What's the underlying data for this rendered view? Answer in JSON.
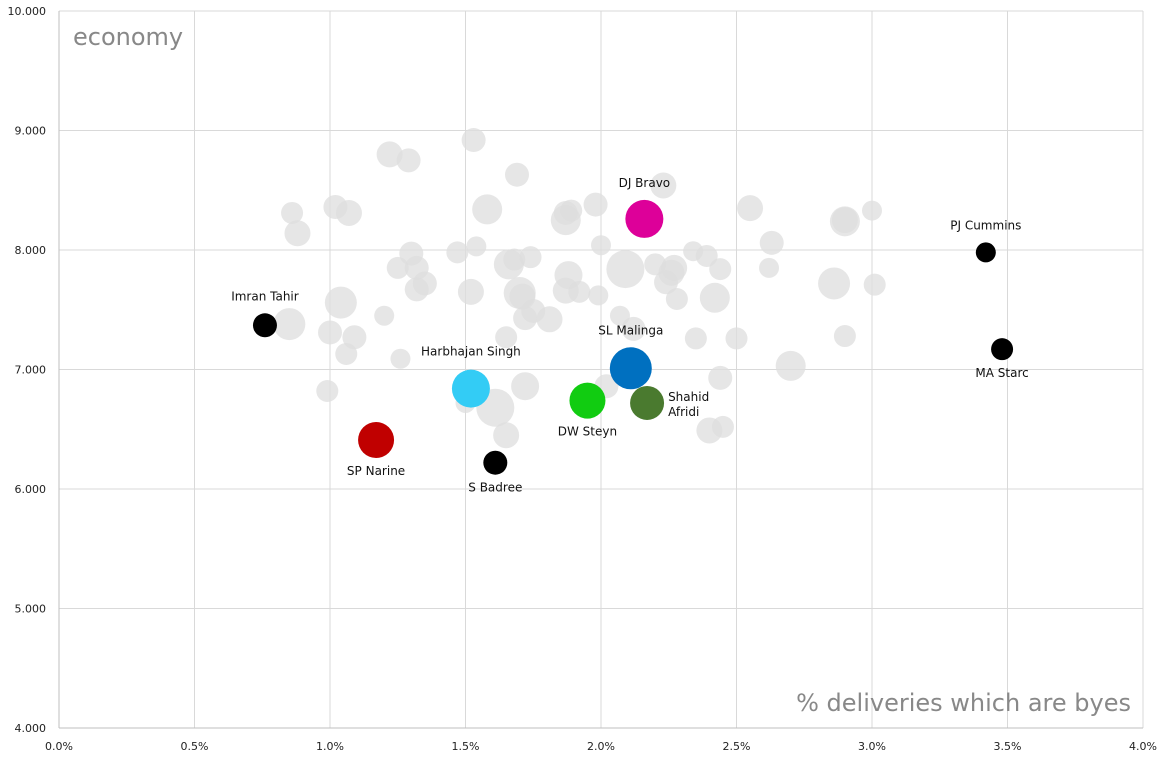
{
  "chart_data": {
    "type": "scatter",
    "title": "",
    "ylabel": "economy",
    "xlabel": "% deliveries which are byes",
    "xlim": [
      0.0,
      4.0
    ],
    "ylim": [
      4.0,
      10.0
    ],
    "x_ticks": [
      "0.0%",
      "0.5%",
      "1.0%",
      "1.5%",
      "2.0%",
      "2.5%",
      "3.0%",
      "3.5%",
      "4.0%"
    ],
    "x_tick_values": [
      0.0,
      0.5,
      1.0,
      1.5,
      2.0,
      2.5,
      3.0,
      3.5,
      4.0
    ],
    "y_ticks": [
      "4.000",
      "5.000",
      "6.000",
      "7.000",
      "8.000",
      "9.000",
      "10.000"
    ],
    "y_tick_values": [
      4,
      5,
      6,
      7,
      8,
      9,
      10
    ],
    "grid": true,
    "background_color": "#dedede",
    "background_points": [
      {
        "x": 0.86,
        "y": 8.31,
        "s": 11
      },
      {
        "x": 0.88,
        "y": 8.14,
        "s": 13
      },
      {
        "x": 1.02,
        "y": 8.36,
        "s": 12
      },
      {
        "x": 1.07,
        "y": 8.31,
        "s": 13
      },
      {
        "x": 0.85,
        "y": 7.38,
        "s": 16
      },
      {
        "x": 1.0,
        "y": 7.31,
        "s": 12
      },
      {
        "x": 1.04,
        "y": 7.56,
        "s": 16
      },
      {
        "x": 1.06,
        "y": 7.13,
        "s": 11
      },
      {
        "x": 1.09,
        "y": 7.27,
        "s": 12
      },
      {
        "x": 0.99,
        "y": 6.82,
        "s": 11
      },
      {
        "x": 1.2,
        "y": 7.45,
        "s": 10
      },
      {
        "x": 1.22,
        "y": 8.8,
        "s": 13
      },
      {
        "x": 1.29,
        "y": 8.75,
        "s": 12
      },
      {
        "x": 1.25,
        "y": 7.85,
        "s": 11
      },
      {
        "x": 1.3,
        "y": 7.97,
        "s": 12
      },
      {
        "x": 1.32,
        "y": 7.85,
        "s": 12
      },
      {
        "x": 1.32,
        "y": 7.67,
        "s": 12
      },
      {
        "x": 1.35,
        "y": 7.72,
        "s": 12
      },
      {
        "x": 1.26,
        "y": 7.09,
        "s": 10
      },
      {
        "x": 1.47,
        "y": 7.98,
        "s": 11
      },
      {
        "x": 1.53,
        "y": 8.92,
        "s": 12
      },
      {
        "x": 1.54,
        "y": 8.03,
        "s": 10
      },
      {
        "x": 1.52,
        "y": 7.65,
        "s": 13
      },
      {
        "x": 1.58,
        "y": 8.34,
        "s": 15
      },
      {
        "x": 1.61,
        "y": 6.68,
        "s": 19
      },
      {
        "x": 1.5,
        "y": 6.72,
        "s": 10
      },
      {
        "x": 1.65,
        "y": 7.27,
        "s": 11
      },
      {
        "x": 1.66,
        "y": 7.88,
        "s": 15
      },
      {
        "x": 1.68,
        "y": 7.92,
        "s": 11
      },
      {
        "x": 1.69,
        "y": 8.63,
        "s": 12
      },
      {
        "x": 1.7,
        "y": 7.64,
        "s": 16
      },
      {
        "x": 1.71,
        "y": 7.61,
        "s": 13
      },
      {
        "x": 1.72,
        "y": 7.43,
        "s": 12
      },
      {
        "x": 1.74,
        "y": 7.94,
        "s": 11
      },
      {
        "x": 1.75,
        "y": 7.49,
        "s": 12
      },
      {
        "x": 1.72,
        "y": 6.86,
        "s": 14
      },
      {
        "x": 1.65,
        "y": 6.45,
        "s": 13
      },
      {
        "x": 1.81,
        "y": 7.42,
        "s": 13
      },
      {
        "x": 1.87,
        "y": 8.31,
        "s": 12
      },
      {
        "x": 1.87,
        "y": 8.25,
        "s": 15
      },
      {
        "x": 1.89,
        "y": 8.33,
        "s": 11
      },
      {
        "x": 1.87,
        "y": 7.66,
        "s": 13
      },
      {
        "x": 1.88,
        "y": 7.79,
        "s": 14
      },
      {
        "x": 1.92,
        "y": 7.65,
        "s": 11
      },
      {
        "x": 1.98,
        "y": 8.38,
        "s": 12
      },
      {
        "x": 2.0,
        "y": 8.04,
        "s": 10
      },
      {
        "x": 1.99,
        "y": 7.62,
        "s": 10
      },
      {
        "x": 2.07,
        "y": 7.45,
        "s": 10
      },
      {
        "x": 2.09,
        "y": 7.84,
        "s": 19
      },
      {
        "x": 2.12,
        "y": 7.34,
        "s": 12
      },
      {
        "x": 2.02,
        "y": 6.86,
        "s": 12
      },
      {
        "x": 2.12,
        "y": 6.95,
        "s": 11
      },
      {
        "x": 2.16,
        "y": 8.22,
        "s": 10
      },
      {
        "x": 2.23,
        "y": 8.54,
        "s": 13
      },
      {
        "x": 2.2,
        "y": 7.88,
        "s": 11
      },
      {
        "x": 2.24,
        "y": 7.73,
        "s": 12
      },
      {
        "x": 2.26,
        "y": 7.81,
        "s": 13
      },
      {
        "x": 2.27,
        "y": 7.85,
        "s": 13
      },
      {
        "x": 2.28,
        "y": 7.59,
        "s": 11
      },
      {
        "x": 2.34,
        "y": 7.99,
        "s": 10
      },
      {
        "x": 2.39,
        "y": 7.95,
        "s": 11
      },
      {
        "x": 2.42,
        "y": 7.6,
        "s": 15
      },
      {
        "x": 2.44,
        "y": 7.84,
        "s": 11
      },
      {
        "x": 2.35,
        "y": 7.26,
        "s": 11
      },
      {
        "x": 2.5,
        "y": 7.26,
        "s": 11
      },
      {
        "x": 2.44,
        "y": 6.93,
        "s": 12
      },
      {
        "x": 2.4,
        "y": 6.49,
        "s": 13
      },
      {
        "x": 2.45,
        "y": 6.52,
        "s": 11
      },
      {
        "x": 2.55,
        "y": 8.35,
        "s": 13
      },
      {
        "x": 2.63,
        "y": 8.06,
        "s": 12
      },
      {
        "x": 2.62,
        "y": 7.85,
        "s": 10
      },
      {
        "x": 2.7,
        "y": 7.03,
        "s": 15
      },
      {
        "x": 2.86,
        "y": 7.72,
        "s": 16
      },
      {
        "x": 2.9,
        "y": 8.25,
        "s": 13
      },
      {
        "x": 2.9,
        "y": 7.28,
        "s": 11
      },
      {
        "x": 2.9,
        "y": 8.24,
        "s": 15
      },
      {
        "x": 3.0,
        "y": 8.33,
        "s": 10
      },
      {
        "x": 3.01,
        "y": 7.71,
        "s": 11
      }
    ],
    "highlighted": [
      {
        "name": "Imran Tahir",
        "x": 0.76,
        "y": 7.37,
        "color": "#000000",
        "s": 12,
        "label_pos": "above"
      },
      {
        "name": "SP Narine",
        "x": 1.17,
        "y": 6.41,
        "color": "#c00000",
        "s": 18,
        "label_pos": "below"
      },
      {
        "name": "Harbhajan Singh",
        "x": 1.52,
        "y": 6.84,
        "color": "#33ccf5",
        "s": 19,
        "label_pos": "above-right"
      },
      {
        "name": "S Badree",
        "x": 1.61,
        "y": 6.22,
        "color": "#000000",
        "s": 12,
        "label_pos": "below"
      },
      {
        "name": "DW Steyn",
        "x": 1.95,
        "y": 6.74,
        "color": "#11cc11",
        "s": 18,
        "label_pos": "below"
      },
      {
        "name": "SL Malinga",
        "x": 2.11,
        "y": 7.01,
        "color": "#0070c0",
        "s": 21,
        "label_pos": "above"
      },
      {
        "name": "DJ Bravo",
        "x": 2.16,
        "y": 8.26,
        "color": "#dd0099",
        "s": 19,
        "label_pos": "above"
      },
      {
        "name": "Shahid Afridi",
        "x": 2.17,
        "y": 6.72,
        "color": "#4a7a2f",
        "s": 17,
        "label_pos": "right",
        "label_lines": [
          "Shahid",
          "Afridi"
        ]
      },
      {
        "name": "PJ Cummins",
        "x": 3.42,
        "y": 7.98,
        "color": "#000000",
        "s": 10,
        "label_pos": "above"
      },
      {
        "name": "MA Starc",
        "x": 3.48,
        "y": 7.17,
        "color": "#000000",
        "s": 11,
        "label_pos": "below"
      }
    ]
  }
}
